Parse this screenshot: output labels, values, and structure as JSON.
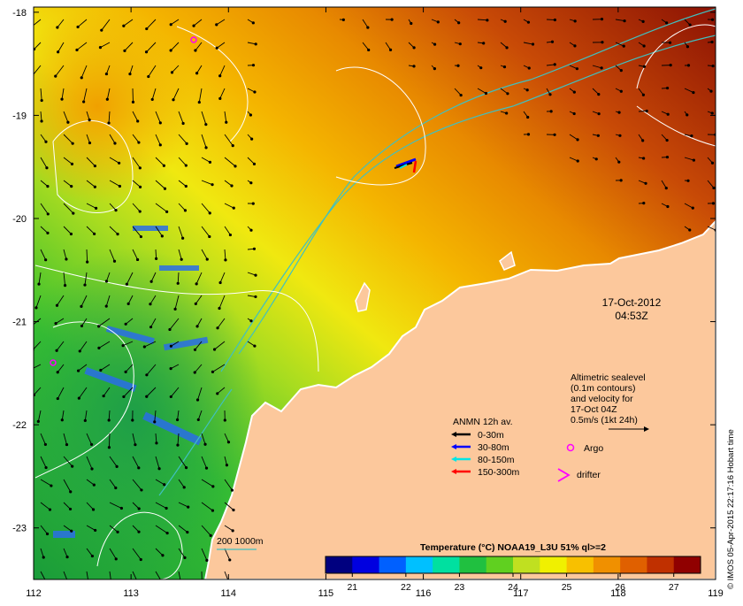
{
  "map": {
    "lon_ticks": [
      "112",
      "113",
      "114",
      "115",
      "116",
      "117",
      "118",
      "119"
    ],
    "lat_ticks": [
      "-18",
      "-19",
      "-20",
      "-21",
      "-22",
      "-23"
    ],
    "lon_range": [
      112,
      119
    ],
    "lat_range": [
      -23.5,
      -17.95
    ],
    "land_color": "#fcc89c",
    "ocean_warm_color": "#9b1d07",
    "ocean_cool_color": "#1fae3a"
  },
  "timestamp": {
    "date": "17-Oct-2012",
    "time": "04:53Z"
  },
  "altimetry_note": {
    "line1": "Altimetric sealevel",
    "line2": "(0.1m contours)",
    "line3": "and velocity for",
    "line4": "17-Oct 04Z",
    "line5": "0.5m/s (1kt 24h)"
  },
  "anmn_legend": {
    "title": "ANMN 12h av.",
    "items": [
      {
        "label": "0-30m",
        "color": "#000000"
      },
      {
        "label": "30-80m",
        "color": "#0000ff"
      },
      {
        "label": "80-150m",
        "color": "#00e5e5"
      },
      {
        "label": "150-300m",
        "color": "#ff0000"
      }
    ]
  },
  "markers": {
    "argo_label": "Argo",
    "argo_color": "#ff00ff",
    "drifter_label": "drifter",
    "drifter_color": "#ff00ff"
  },
  "isobath": {
    "label": "200  1000m",
    "color": "#40c0c0"
  },
  "colorbar": {
    "title": "Temperature (°C) NOAA19_L3U 51% ql>=2",
    "ticks": [
      "21",
      "22",
      "23",
      "24",
      "25",
      "26",
      "27"
    ],
    "colors": [
      "#00007f",
      "#0000e0",
      "#0060ff",
      "#00c0ff",
      "#00e0a0",
      "#20c040",
      "#60d020",
      "#c0e020",
      "#f0f000",
      "#f8c000",
      "#f09000",
      "#e06000",
      "#c03000",
      "#900000"
    ]
  },
  "credit": "© IMOS 05-Apr-2015 22:17:16 Hobart time"
}
